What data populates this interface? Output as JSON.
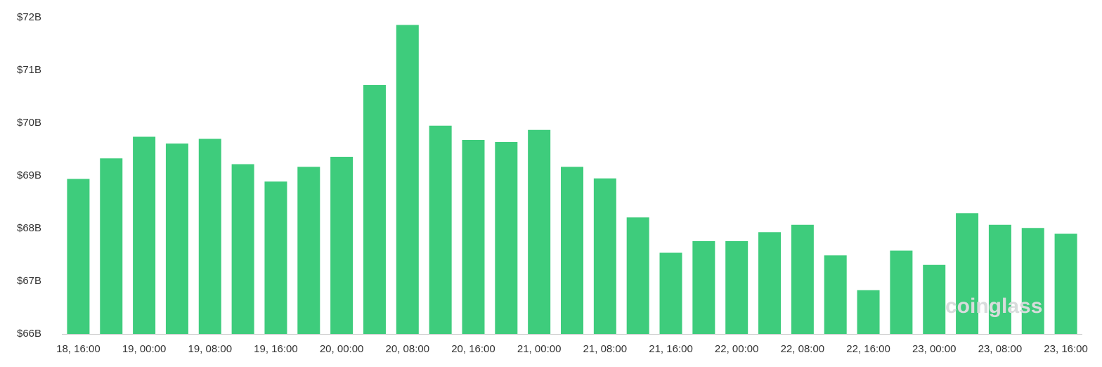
{
  "chart_data": {
    "type": "bar",
    "categories": [
      "18, 16:00",
      null,
      "19, 00:00",
      null,
      "19, 08:00",
      null,
      "19, 16:00",
      null,
      "20, 00:00",
      null,
      "20, 08:00",
      null,
      "20, 16:00",
      null,
      "21, 00:00",
      null,
      "21, 08:00",
      null,
      "21, 16:00",
      null,
      "22, 00:00",
      null,
      "22, 08:00",
      null,
      "22, 16:00",
      null,
      "23, 00:00",
      null,
      "23, 08:00",
      null,
      "23, 16:00"
    ],
    "values": [
      68.94,
      69.33,
      69.74,
      69.61,
      69.7,
      69.22,
      68.89,
      69.17,
      69.36,
      70.72,
      71.86,
      69.95,
      69.68,
      69.64,
      69.87,
      69.17,
      68.95,
      68.21,
      67.54,
      67.76,
      67.76,
      67.93,
      68.07,
      67.49,
      66.83,
      67.58,
      67.31,
      68.29,
      68.07,
      68.01,
      67.9
    ],
    "color": "#3ecc7c",
    "ylim": [
      66,
      72
    ],
    "yticks": [
      {
        "value": 66,
        "label": "$66B"
      },
      {
        "value": 67,
        "label": "$67B"
      },
      {
        "value": 68,
        "label": "$68B"
      },
      {
        "value": 69,
        "label": "$69B"
      },
      {
        "value": 70,
        "label": "$70B"
      },
      {
        "value": 71,
        "label": "$71B"
      },
      {
        "value": 72,
        "label": "$72B"
      }
    ],
    "watermark": "coinglass"
  }
}
